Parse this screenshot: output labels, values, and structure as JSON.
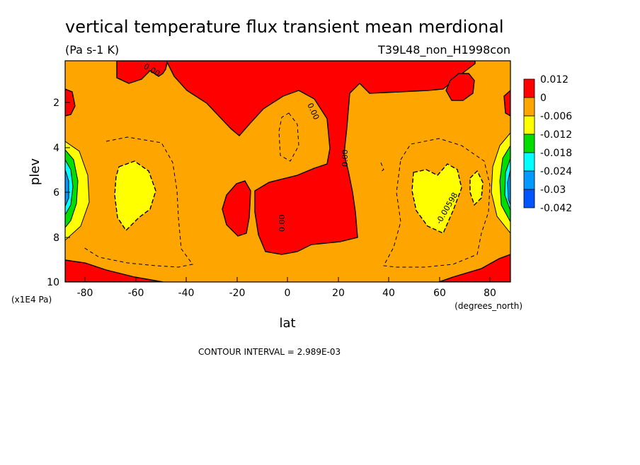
{
  "chart_data": {
    "type": "heatmap",
    "title": "vertical temperature flux transient mean merdional",
    "units": "(Pa s-1 K)",
    "run_label": "T39L48_non_H1998con",
    "xlabel": "lat",
    "x_unit_label": "(degrees_north)",
    "ylabel": "plev",
    "y_unit_label": "(x1E4 Pa)",
    "footer": "CONTOUR INTERVAL = 2.989E-03",
    "xlim": [
      -88,
      88
    ],
    "ylim": [
      10,
      0.15
    ],
    "y_reversed": true,
    "x_ticks": [
      "-80",
      "-60",
      "-40",
      "-20",
      "0",
      "20",
      "40",
      "60",
      "80"
    ],
    "y_ticks": [
      "2",
      "4",
      "6",
      "8",
      "10"
    ],
    "legend": {
      "placement": "right",
      "labels": [
        "0.012",
        "0",
        "-0.006",
        "-0.012",
        "-0.018",
        "-0.024",
        "-0.03",
        "-0.042"
      ],
      "colors": [
        "#ff0000",
        "#ffa500",
        "#ffff00",
        "#00dd00",
        "#00ffff",
        "#0099ff",
        "#0055ff"
      ]
    },
    "fill_colors": {
      "background": "#ffa500",
      "positive": "#ff0000",
      "negative_weak": "#ffff00",
      "negative_mid": "#00dd00",
      "negative_strong": "#00ffff",
      "negative_stronger": "#0099ff"
    },
    "contour_labels": [
      {
        "text": "0.00",
        "lat": -55,
        "plev": 0.8
      },
      {
        "text": "0.00",
        "lat": 11,
        "plev": 3.0
      },
      {
        "text": "0.00",
        "lat": 22,
        "plev": 5.0
      },
      {
        "text": "0.00",
        "lat": -3,
        "plev": 7.4
      },
      {
        "text": "-0.00598",
        "lat": 62,
        "plev": 6.9
      }
    ]
  }
}
